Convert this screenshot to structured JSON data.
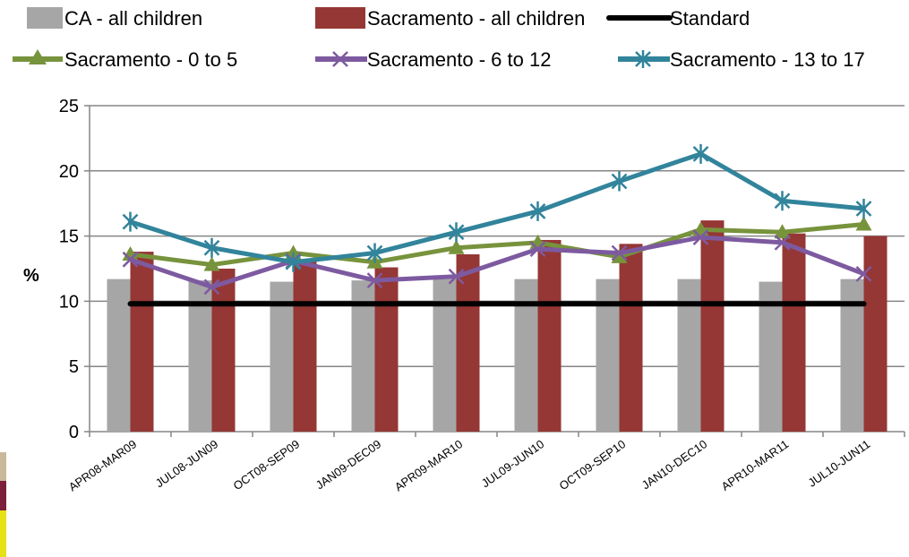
{
  "colors": {
    "ca_all": "#a6a6a6",
    "sac_all": "#953735",
    "standard": "#000000",
    "sac_0_5": "#77933c",
    "sac_6_12": "#7d5aa0",
    "sac_13_17": "#31849b",
    "gridline": "#868686"
  },
  "chart_data": {
    "type": "bar",
    "title": "",
    "xlabel": "",
    "ylabel": "%",
    "ylim": [
      0,
      25
    ],
    "yticks": [
      0,
      5,
      10,
      15,
      20,
      25
    ],
    "grid": true,
    "legend_position": "top",
    "categories": [
      "APR08-MAR09",
      "JUL08-JUN09",
      "OCT08-SEP09",
      "JAN09-DEC09",
      "APR09-MAR10",
      "JUL09-JUN10",
      "OCT09-SEP10",
      "JAN10-DEC10",
      "APR10-MAR11",
      "JUL10-JUN11"
    ],
    "series": [
      {
        "name": "CA - all children",
        "kind": "bar",
        "color_key": "ca_all",
        "values": [
          11.7,
          11.6,
          11.5,
          11.6,
          11.7,
          11.7,
          11.7,
          11.7,
          11.5,
          11.7
        ]
      },
      {
        "name": "Sacramento - all children",
        "kind": "bar",
        "color_key": "sac_all",
        "values": [
          13.8,
          12.5,
          13.2,
          12.6,
          13.6,
          14.7,
          14.4,
          16.2,
          15.2,
          15.0
        ]
      },
      {
        "name": "Standard",
        "kind": "line",
        "marker": "none",
        "color_key": "standard",
        "values": [
          9.8,
          9.8,
          9.8,
          9.8,
          9.8,
          9.8,
          9.8,
          9.8,
          9.8,
          9.8
        ]
      },
      {
        "name": "Sacramento - 0 to 5",
        "kind": "line",
        "marker": "triangle",
        "color_key": "sac_0_5",
        "values": [
          13.6,
          12.8,
          13.7,
          13.0,
          14.1,
          14.5,
          13.4,
          15.5,
          15.3,
          15.9
        ]
      },
      {
        "name": "Sacramento - 6 to 12",
        "kind": "line",
        "marker": "x",
        "color_key": "sac_6_12",
        "values": [
          13.2,
          11.1,
          13.1,
          11.6,
          11.9,
          14.0,
          13.7,
          14.9,
          14.5,
          12.1
        ]
      },
      {
        "name": "Sacramento - 13 to 17",
        "kind": "line",
        "marker": "star",
        "color_key": "sac_13_17",
        "values": [
          16.1,
          14.1,
          13.0,
          13.7,
          15.3,
          16.9,
          19.2,
          21.3,
          17.7,
          17.1
        ]
      }
    ]
  }
}
